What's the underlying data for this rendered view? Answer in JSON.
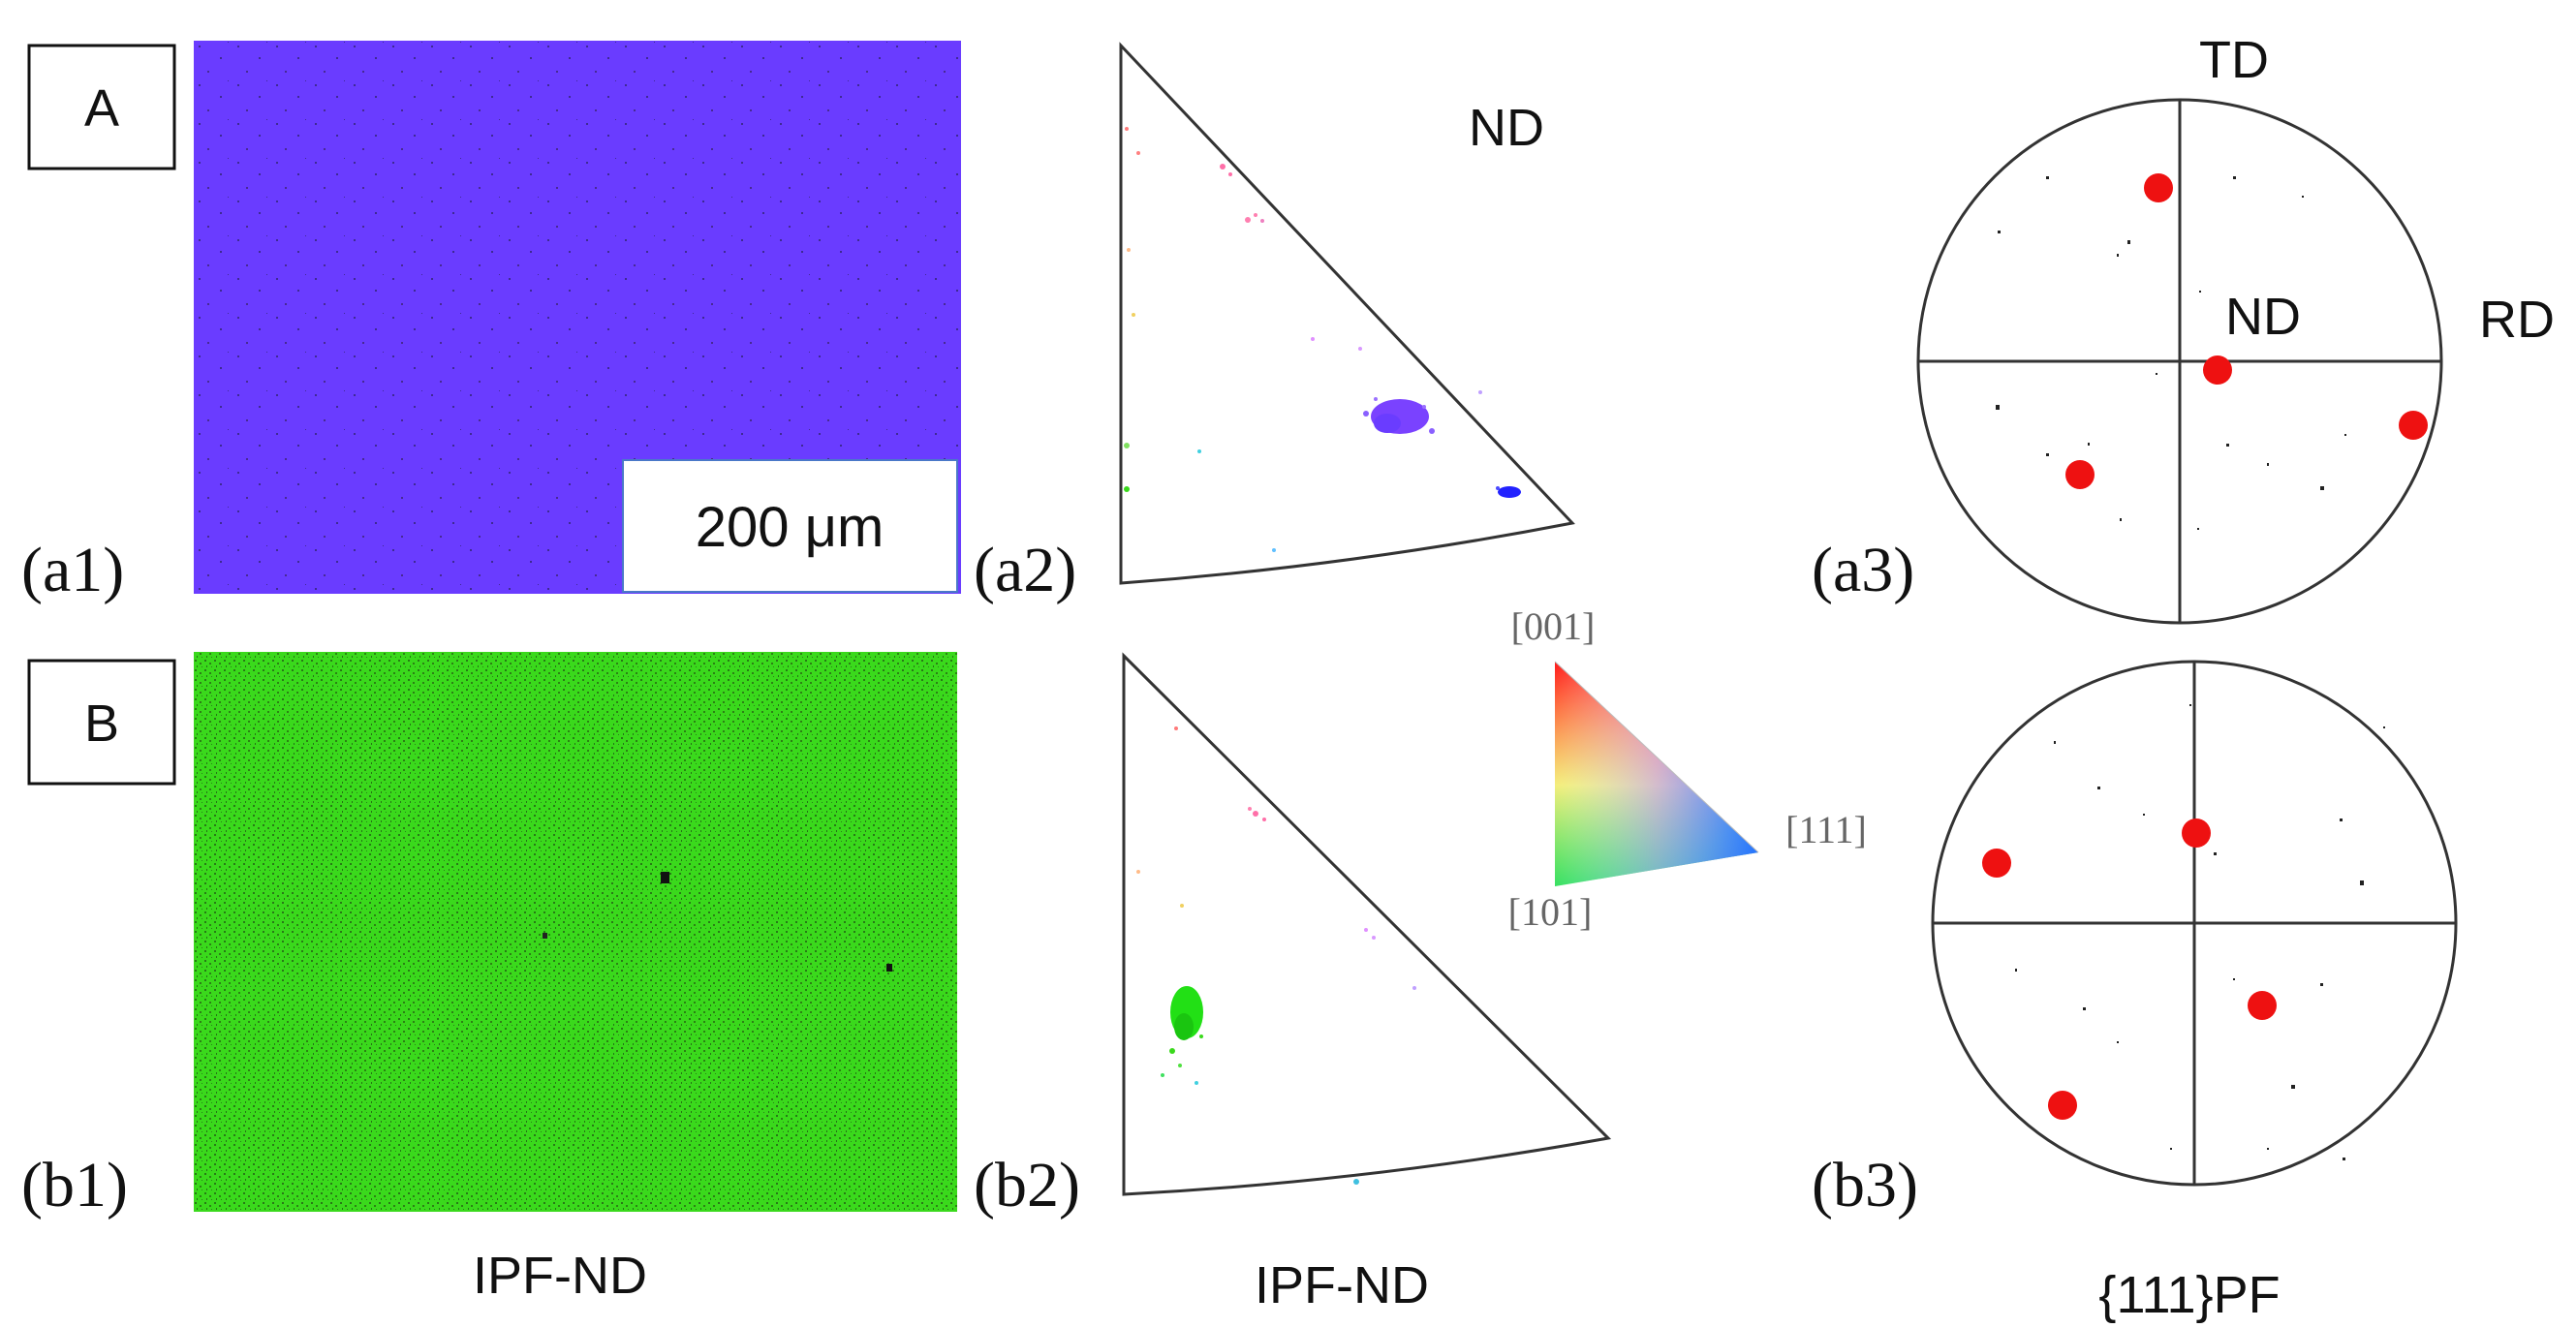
{
  "row_a": {
    "tag": "A",
    "map_label": "(a1)",
    "ipf_label": "(a2)",
    "pf_label": "(a3)",
    "scale_bar": "200 μm",
    "map_color": "#6a3cff",
    "ipf_cluster_color": "#7a42ff"
  },
  "row_b": {
    "tag": "B",
    "map_label": "(b1)",
    "ipf_label": "(b2)",
    "pf_label": "(b3)",
    "map_color": "#3ad91c",
    "ipf_cluster_color": "#22e015"
  },
  "ipf_axis": "ND",
  "pole_axes": {
    "td": "TD",
    "rd": "RD",
    "nd": "ND"
  },
  "key_triangle": {
    "corner_001": "[001]",
    "corner_101": "[101]",
    "corner_111": "[111]"
  },
  "captions": {
    "col1": "IPF-ND",
    "col2": "IPF-ND",
    "col3": "{111}PF"
  },
  "marker_color": "#ee1111"
}
